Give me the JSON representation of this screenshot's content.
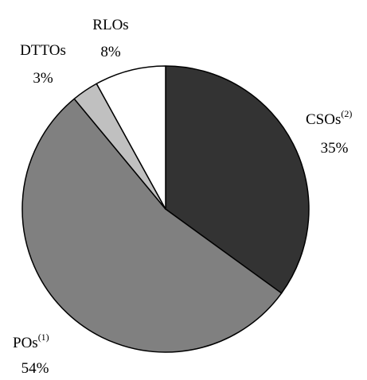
{
  "chart_data": {
    "type": "pie",
    "start_angle_deg": 0,
    "direction": "clockwise",
    "slices": [
      {
        "name": "CSOs",
        "note": "(2)",
        "value": 35,
        "value_label": "35%",
        "color": "#333333"
      },
      {
        "name": "POs",
        "note": "(1)",
        "value": 54,
        "value_label": "54%",
        "color": "#808080"
      },
      {
        "name": "DTTOs",
        "note": "",
        "value": 3,
        "value_label": "3%",
        "color": "#c0c0c0"
      },
      {
        "name": "RLOs",
        "note": "",
        "value": 8,
        "value_label": "8%",
        "color": "#ffffff"
      }
    ]
  }
}
